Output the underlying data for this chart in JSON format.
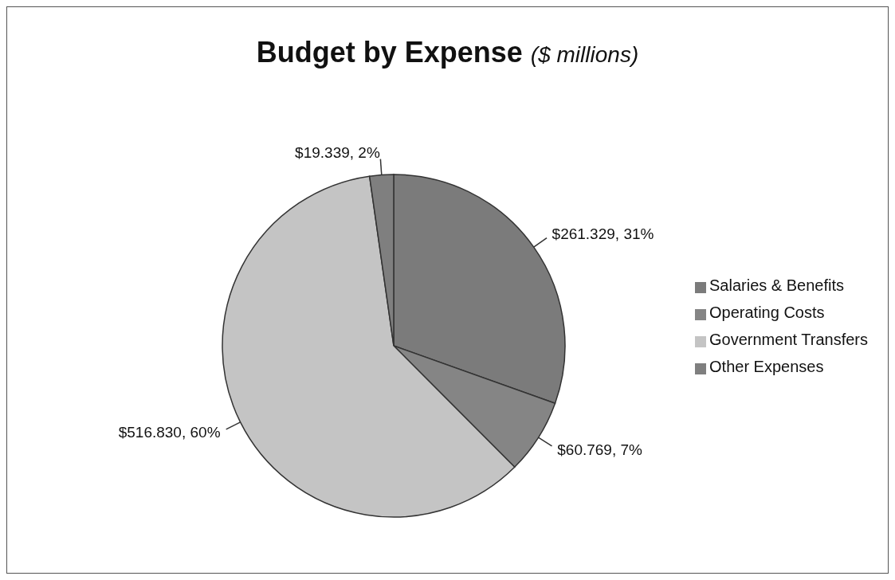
{
  "chart_data": {
    "type": "pie",
    "title": "Budget by Expense",
    "subtitle": "($ millions)",
    "categories": [
      "Salaries & Benefits",
      "Operating Costs",
      "Government Transfers",
      "Other Expenses"
    ],
    "values": [
      261.329,
      60.769,
      516.83,
      19.339
    ],
    "colors": [
      "#7b7b7b",
      "#858585",
      "#c4c4c4",
      "#7f7f7f"
    ],
    "value_labels": [
      "$261.329, 31%",
      "$60.769, 7%",
      "$516.830, 60%",
      "$19.339, 2%"
    ],
    "legend": "right"
  }
}
